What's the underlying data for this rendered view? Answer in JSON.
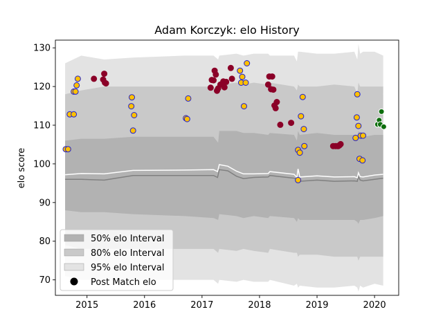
{
  "chart_data": {
    "type": "scatter",
    "title": "Adam Korczyk: elo History",
    "xlabel": "",
    "ylabel": "elo score",
    "xlim": [
      2014.45,
      2020.42
    ],
    "ylim": [
      66,
      132
    ],
    "x_ticks": [
      2015,
      2016,
      2017,
      2018,
      2019,
      2020
    ],
    "x_tick_labels": [
      "2015",
      "2016",
      "2017",
      "2018",
      "2019",
      "2020"
    ],
    "y_ticks": [
      70,
      80,
      90,
      100,
      110,
      120,
      130
    ],
    "y_tick_labels": [
      "70",
      "80",
      "90",
      "100",
      "110",
      "120",
      "130"
    ],
    "colors": {
      "band50": "#b2b2b2",
      "band80": "#c9c9c9",
      "band95": "#e3e3e3",
      "median_line": "#808080",
      "mean_line": "#ffffff",
      "win": "#8b0028",
      "loss_fill": "#ffc000",
      "loss_edge": "#1f1fd0",
      "recent": "#0e6e0e"
    },
    "legend": {
      "placement": "lower-left",
      "entries": [
        {
          "label": "50% elo Interval",
          "kind": "band50"
        },
        {
          "label": "80% elo Interval",
          "kind": "band80"
        },
        {
          "label": "95% elo Interval",
          "kind": "band95"
        },
        {
          "label": "Post Match elo",
          "kind": "marker"
        }
      ]
    },
    "bands": {
      "x": [
        2014.62,
        2014.9,
        2015.3,
        2015.8,
        2016.7,
        2017.2,
        2017.28,
        2017.3,
        2017.6,
        2017.72,
        2017.9,
        2018.15,
        2018.18,
        2018.6,
        2018.65,
        2018.67,
        2018.7,
        2019.0,
        2019.3,
        2019.65,
        2019.7,
        2019.72,
        2019.75,
        2019.8,
        2020.0,
        2020.15
      ],
      "p95_upper": [
        126,
        128,
        127,
        127.5,
        128,
        128,
        127,
        128,
        128.5,
        128,
        128.5,
        128.5,
        128,
        128,
        126.5,
        129,
        129,
        128.5,
        128.5,
        129,
        127,
        131,
        128.5,
        129,
        129,
        128
      ],
      "p95_lower": [
        71,
        70,
        70,
        70,
        70,
        70,
        69,
        70,
        69.5,
        70,
        69.5,
        69.5,
        70,
        68.5,
        69,
        68,
        68.5,
        68,
        68,
        68.5,
        68,
        67,
        68.5,
        68,
        69,
        68.5
      ],
      "p80_upper": [
        118,
        119,
        120,
        120,
        120,
        120,
        119,
        120.5,
        121,
        120.5,
        121,
        120.5,
        121,
        120,
        119,
        120.5,
        120,
        120,
        120.5,
        120,
        118,
        121,
        120,
        120,
        120,
        120
      ],
      "p80_lower": [
        79,
        78,
        78,
        78,
        78,
        78,
        77,
        78,
        77.5,
        78,
        77.5,
        77,
        78,
        77,
        77,
        76,
        76.5,
        76.5,
        76,
        76,
        76,
        75,
        76,
        76,
        76,
        76
      ],
      "p50_upper": [
        106,
        106.5,
        106.5,
        107,
        107,
        107,
        105.5,
        108.5,
        108.5,
        108,
        108,
        107.5,
        108,
        107.5,
        106,
        108.5,
        107.5,
        108,
        107.5,
        107.5,
        106,
        108.5,
        108,
        107,
        107.5,
        107.5
      ],
      "p50_lower": [
        88,
        87.5,
        87.5,
        87,
        86.5,
        86,
        85.5,
        87,
        86.5,
        86,
        86.5,
        86,
        86.5,
        86,
        85,
        86,
        85.5,
        85.5,
        85.5,
        85.5,
        85,
        84.5,
        85.5,
        85.5,
        86,
        86.5
      ]
    },
    "lines": {
      "x": [
        2014.62,
        2014.9,
        2015.3,
        2015.8,
        2016.7,
        2017.2,
        2017.27,
        2017.3,
        2017.45,
        2017.6,
        2017.72,
        2017.9,
        2018.15,
        2018.18,
        2018.6,
        2018.65,
        2018.67,
        2018.7,
        2019.0,
        2019.3,
        2019.65,
        2019.7,
        2019.72,
        2019.75,
        2019.8,
        2020.0,
        2020.15
      ],
      "median": [
        96,
        96,
        95.8,
        97,
        97,
        97,
        96.5,
        98.5,
        98.2,
        96.8,
        96.2,
        96.5,
        96.6,
        97,
        96.3,
        96,
        96.2,
        95.5,
        95.8,
        95.5,
        95.6,
        95.5,
        96.8,
        95.8,
        95.6,
        96,
        96.3
      ],
      "mean": [
        97.2,
        97.5,
        97.4,
        98.3,
        98.4,
        98.5,
        98,
        99.8,
        99.4,
        98.1,
        97.4,
        97.4,
        97.5,
        98,
        97.3,
        96.5,
        98.7,
        96.6,
        96.9,
        96.6,
        96.7,
        96.4,
        97.7,
        96.7,
        96.6,
        97.1,
        97.3
      ]
    },
    "series": [
      {
        "kind": "loss",
        "points": [
          [
            2014.63,
            103.8
          ],
          [
            2014.67,
            103.8
          ],
          [
            2014.7,
            112.8
          ],
          [
            2014.77,
            112.8
          ],
          [
            2014.77,
            118.7
          ],
          [
            2014.8,
            118.7
          ],
          [
            2014.82,
            120.3
          ],
          [
            2014.84,
            122
          ],
          [
            2015.78,
            117.2
          ],
          [
            2015.77,
            114.9
          ],
          [
            2015.82,
            112.6
          ],
          [
            2015.8,
            108.6
          ],
          [
            2016.72,
            111.8
          ],
          [
            2016.74,
            111.6
          ],
          [
            2016.76,
            116.9
          ],
          [
            2017.66,
            124.1
          ],
          [
            2017.68,
            121
          ],
          [
            2017.7,
            122.5
          ],
          [
            2017.73,
            114.9
          ],
          [
            2017.76,
            121
          ],
          [
            2017.78,
            126
          ],
          [
            2018.67,
            95.8
          ],
          [
            2018.67,
            103.6
          ],
          [
            2018.7,
            102.9
          ],
          [
            2018.72,
            112.3
          ],
          [
            2018.75,
            117.3
          ],
          [
            2018.77,
            109
          ],
          [
            2018.78,
            104.6
          ],
          [
            2019.67,
            106.7
          ],
          [
            2019.69,
            112
          ],
          [
            2019.7,
            118
          ],
          [
            2019.72,
            109.8
          ],
          [
            2019.74,
            101.3
          ],
          [
            2019.76,
            107.3
          ],
          [
            2019.79,
            100.9
          ],
          [
            2019.8,
            107.3
          ]
        ]
      },
      {
        "kind": "win",
        "points": [
          [
            2015.12,
            122
          ],
          [
            2015.28,
            121.8
          ],
          [
            2015.3,
            123.3
          ],
          [
            2015.31,
            121
          ],
          [
            2015.33,
            120.8
          ],
          [
            2017.15,
            119.7
          ],
          [
            2017.17,
            121.7
          ],
          [
            2017.2,
            121.6
          ],
          [
            2017.22,
            124.1
          ],
          [
            2017.24,
            123.1
          ],
          [
            2017.26,
            118.9
          ],
          [
            2017.28,
            119.5
          ],
          [
            2017.32,
            120.5
          ],
          [
            2017.37,
            121.3
          ],
          [
            2017.39,
            119.8
          ],
          [
            2017.42,
            121.2
          ],
          [
            2017.5,
            124.8
          ],
          [
            2017.52,
            122
          ],
          [
            2018.15,
            120.5
          ],
          [
            2018.17,
            122.6
          ],
          [
            2018.2,
            119.3
          ],
          [
            2018.22,
            122.6
          ],
          [
            2018.24,
            119.2
          ],
          [
            2018.26,
            115.1
          ],
          [
            2018.28,
            114.4
          ],
          [
            2018.3,
            116
          ],
          [
            2018.36,
            110.1
          ],
          [
            2018.55,
            110.6
          ],
          [
            2019.28,
            104.6
          ],
          [
            2019.32,
            104.6
          ],
          [
            2019.35,
            104.6
          ],
          [
            2019.37,
            104.6
          ],
          [
            2019.39,
            104.8
          ],
          [
            2019.41,
            105.1
          ]
        ]
      },
      {
        "kind": "recent",
        "points": [
          [
            2020.05,
            110.2
          ],
          [
            2020.08,
            111.3
          ],
          [
            2020.1,
            110.2
          ],
          [
            2020.12,
            113.5
          ],
          [
            2020.16,
            109.6
          ]
        ]
      }
    ]
  }
}
